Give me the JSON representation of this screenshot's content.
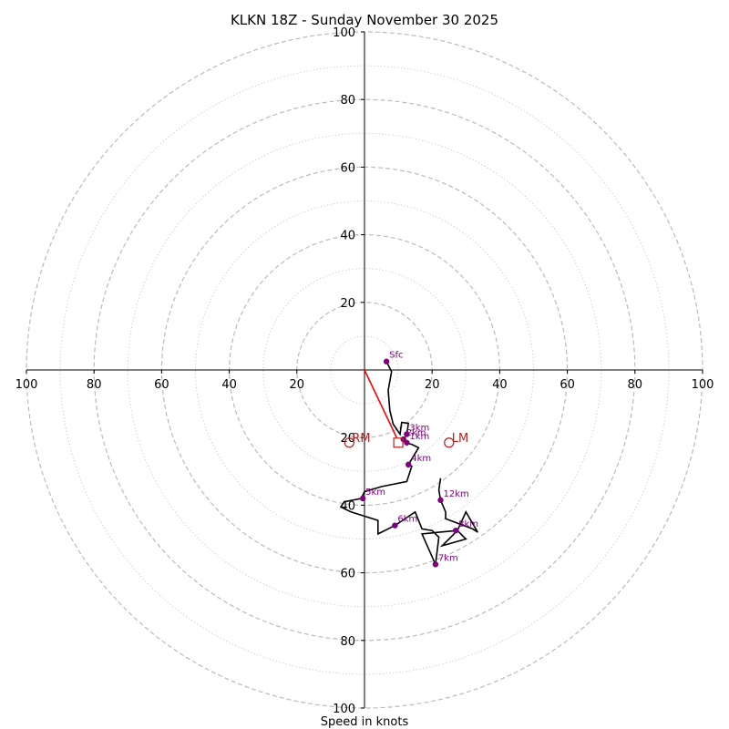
{
  "chart_data": {
    "type": "hodograph",
    "title": "KLKN 18Z - Sunday November 30 2025",
    "xlabel": "Speed in knots",
    "units": "knots",
    "range": [
      -100,
      100
    ],
    "ring_major_step": 20,
    "ring_minor_step": 10,
    "tick_labels": [
      "100",
      "80",
      "60",
      "40",
      "20",
      "20",
      "40",
      "60",
      "80",
      "100"
    ],
    "tick_values": [
      -100,
      -80,
      -60,
      -40,
      -20,
      20,
      40,
      60,
      80,
      100
    ],
    "colors": {
      "trace": "#000000",
      "shear_vector": "#ff0000",
      "points": "#800080",
      "point_labels": "#800080",
      "storm_motion": "#b22222",
      "rings": "#bbbbbb"
    },
    "trace": [
      [
        6.5,
        2.5
      ],
      [
        8,
        -0.5
      ],
      [
        7,
        -6
      ],
      [
        7.5,
        -12
      ],
      [
        8.5,
        -16
      ],
      [
        10.5,
        -19
      ],
      [
        11,
        -15.5
      ],
      [
        13,
        -15.8
      ],
      [
        12.5,
        -19
      ],
      [
        11.5,
        -20.5
      ],
      [
        12,
        -21.5
      ],
      [
        14,
        -22
      ],
      [
        16,
        -23
      ],
      [
        14.5,
        -25.5
      ],
      [
        13,
        -28
      ],
      [
        14,
        -28.5
      ],
      [
        12.5,
        -33
      ],
      [
        5,
        -34.5
      ],
      [
        0,
        -36
      ],
      [
        -1,
        -38
      ],
      [
        -6,
        -39
      ],
      [
        -7,
        -40.5
      ],
      [
        -4,
        -42
      ],
      [
        4,
        -44.5
      ],
      [
        4,
        -48.5
      ],
      [
        9,
        -46
      ],
      [
        15,
        -42
      ],
      [
        17,
        -47
      ],
      [
        20,
        -47.5
      ],
      [
        22,
        -49.5
      ],
      [
        21,
        -57.5
      ],
      [
        17,
        -48.5
      ],
      [
        22,
        -48
      ],
      [
        27.5,
        -47.5
      ],
      [
        30,
        -50
      ],
      [
        23,
        -52
      ],
      [
        27.5,
        -47.5
      ],
      [
        30,
        -42
      ],
      [
        33.5,
        -48
      ],
      [
        32,
        -47
      ],
      [
        24,
        -44
      ],
      [
        24,
        -42
      ],
      [
        22.5,
        -38.5
      ],
      [
        22,
        -35.5
      ],
      [
        22.5,
        -32
      ]
    ],
    "points": [
      {
        "label": "Sfc",
        "u": 6.5,
        "v": 2.5
      },
      {
        "label": "1km",
        "u": 12.5,
        "v": -21.5
      },
      {
        "label": "2km",
        "u": 11.5,
        "v": -20.5
      },
      {
        "label": "3km",
        "u": 12.5,
        "v": -19
      },
      {
        "label": "4km",
        "u": 13,
        "v": -28
      },
      {
        "label": "5km",
        "u": -0.5,
        "v": -38
      },
      {
        "label": "6km",
        "u": 9,
        "v": -46
      },
      {
        "label": "7km",
        "u": 21,
        "v": -57.5
      },
      {
        "label": "8km",
        "u": 27,
        "v": -47.5
      },
      {
        "label": "12km",
        "u": 22.5,
        "v": -38.5
      }
    ],
    "shear_vector": {
      "from": [
        0,
        0
      ],
      "to": [
        9.5,
        -20
      ]
    },
    "storm_motion": [
      {
        "label": "RM",
        "u": -4.5,
        "v": -21.5,
        "marker": "circle"
      },
      {
        "label": "LM",
        "u": 25,
        "v": -21.5,
        "marker": "circle"
      },
      {
        "label": "",
        "u": 10,
        "v": -21.5,
        "marker": "square"
      }
    ]
  }
}
